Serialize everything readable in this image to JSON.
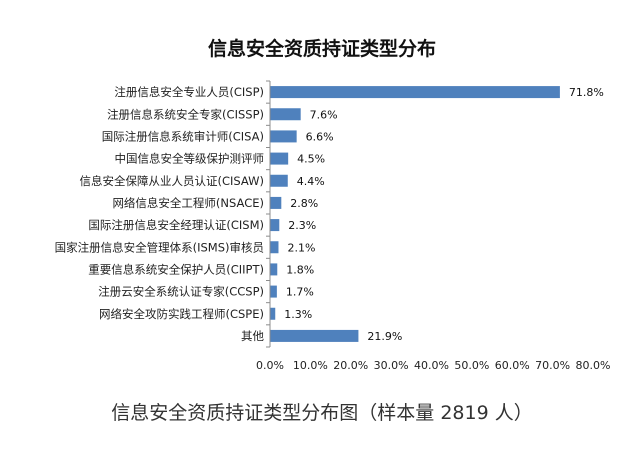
{
  "chart_data": {
    "type": "bar",
    "orientation": "horizontal",
    "title": "信息安全资质持证类型分布",
    "caption": "信息安全资质持证类型分布图（样本量 2819 人）",
    "categories": [
      "注册信息安全专业人员(CISP)",
      "注册信息系统安全专家(CISSP)",
      "国际注册信息系统审计师(CISA)",
      "中国信息安全等级保护测评师",
      "信息安全保障从业人员认证(CISAW)",
      "网络信息安全工程师(NSACE)",
      "国际注册信息安全经理认证(CISM)",
      "国家注册信息安全管理体系(ISMS)审核员",
      "重要信息系统安全保护人员(CIIPT)",
      "注册云安全系统认证专家(CCSP)",
      "网络安全攻防实践工程师(CSPE)",
      "其他"
    ],
    "values": [
      71.8,
      7.6,
      6.6,
      4.5,
      4.4,
      2.8,
      2.3,
      2.1,
      1.8,
      1.7,
      1.3,
      21.9
    ],
    "value_labels": [
      "71.8%",
      "7.6%",
      "6.6%",
      "4.5%",
      "4.4%",
      "2.8%",
      "2.3%",
      "2.1%",
      "1.8%",
      "1.7%",
      "1.3%",
      "21.9%"
    ],
    "xlim": [
      0,
      80
    ],
    "xticks": [
      0,
      10,
      20,
      30,
      40,
      50,
      60,
      70,
      80
    ],
    "xtick_labels": [
      "0.0%",
      "10.0%",
      "20.0%",
      "30.0%",
      "40.0%",
      "50.0%",
      "60.0%",
      "70.0%",
      "80.0%"
    ],
    "bar_color": "#4f81bd",
    "axis_color": "#8c8c8c",
    "grid": false,
    "legend": "none"
  }
}
